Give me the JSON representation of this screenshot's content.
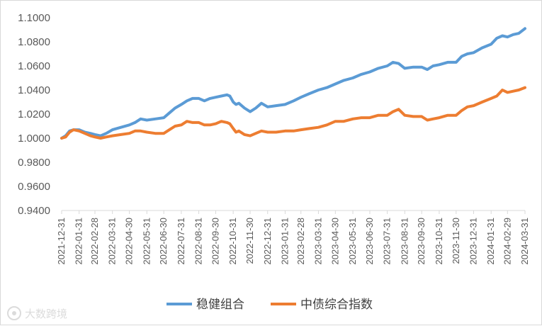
{
  "chart_data": {
    "type": "line",
    "ylim": [
      0.94,
      1.1
    ],
    "yticks": [
      "0.9400",
      "0.9600",
      "0.9800",
      "1.0000",
      "1.0200",
      "1.0400",
      "1.0600",
      "1.0800",
      "1.1000"
    ],
    "x_start": "2021-12-31",
    "x_end": "2024-03-31",
    "xticks": [
      "2021-12-31",
      "2022-01-31",
      "2022-02-28",
      "2022-03-31",
      "2022-04-30",
      "2022-05-31",
      "2022-06-30",
      "2022-07-31",
      "2022-08-31",
      "2022-09-30",
      "2022-10-31",
      "2022-11-30",
      "2022-12-31",
      "2023-01-31",
      "2023-02-28",
      "2023-03-31",
      "2023-04-30",
      "2023-05-31",
      "2023-06-30",
      "2023-07-31",
      "2023-08-31",
      "2023-09-30",
      "2023-10-31",
      "2023-11-30",
      "2023-12-31",
      "2024-01-31",
      "2024-02-29",
      "2024-03-31"
    ],
    "grid": false,
    "legend_position": "bottom",
    "series": [
      {
        "name": "稳健组合",
        "color": "#5b9bd5",
        "points": [
          [
            "2021-12-31",
            1.0
          ],
          [
            "2022-01-07",
            1.002
          ],
          [
            "2022-01-14",
            1.006
          ],
          [
            "2022-01-21",
            1.007
          ],
          [
            "2022-01-31",
            1.007
          ],
          [
            "2022-02-10",
            1.005
          ],
          [
            "2022-02-20",
            1.004
          ],
          [
            "2022-02-28",
            1.003
          ],
          [
            "2022-03-10",
            1.002
          ],
          [
            "2022-03-20",
            1.004
          ],
          [
            "2022-03-31",
            1.007
          ],
          [
            "2022-04-15",
            1.009
          ],
          [
            "2022-04-30",
            1.011
          ],
          [
            "2022-05-10",
            1.013
          ],
          [
            "2022-05-20",
            1.016
          ],
          [
            "2022-05-31",
            1.015
          ],
          [
            "2022-06-15",
            1.016
          ],
          [
            "2022-06-30",
            1.017
          ],
          [
            "2022-07-10",
            1.021
          ],
          [
            "2022-07-20",
            1.025
          ],
          [
            "2022-07-31",
            1.028
          ],
          [
            "2022-08-10",
            1.031
          ],
          [
            "2022-08-20",
            1.033
          ],
          [
            "2022-08-31",
            1.033
          ],
          [
            "2022-09-10",
            1.031
          ],
          [
            "2022-09-20",
            1.033
          ],
          [
            "2022-09-30",
            1.034
          ],
          [
            "2022-10-10",
            1.035
          ],
          [
            "2022-10-20",
            1.036
          ],
          [
            "2022-10-25",
            1.035
          ],
          [
            "2022-10-31",
            1.03
          ],
          [
            "2022-11-05",
            1.028
          ],
          [
            "2022-11-10",
            1.029
          ],
          [
            "2022-11-20",
            1.025
          ],
          [
            "2022-11-30",
            1.022
          ],
          [
            "2022-12-10",
            1.025
          ],
          [
            "2022-12-20",
            1.029
          ],
          [
            "2022-12-31",
            1.026
          ],
          [
            "2023-01-15",
            1.027
          ],
          [
            "2023-01-31",
            1.028
          ],
          [
            "2023-02-15",
            1.031
          ],
          [
            "2023-02-28",
            1.034
          ],
          [
            "2023-03-15",
            1.037
          ],
          [
            "2023-03-31",
            1.04
          ],
          [
            "2023-04-15",
            1.042
          ],
          [
            "2023-04-30",
            1.045
          ],
          [
            "2023-05-15",
            1.048
          ],
          [
            "2023-05-31",
            1.05
          ],
          [
            "2023-06-15",
            1.053
          ],
          [
            "2023-06-30",
            1.055
          ],
          [
            "2023-07-15",
            1.058
          ],
          [
            "2023-07-31",
            1.06
          ],
          [
            "2023-08-10",
            1.063
          ],
          [
            "2023-08-20",
            1.062
          ],
          [
            "2023-08-31",
            1.058
          ],
          [
            "2023-09-15",
            1.059
          ],
          [
            "2023-09-30",
            1.059
          ],
          [
            "2023-10-10",
            1.057
          ],
          [
            "2023-10-20",
            1.06
          ],
          [
            "2023-10-31",
            1.061
          ],
          [
            "2023-11-15",
            1.063
          ],
          [
            "2023-11-30",
            1.063
          ],
          [
            "2023-12-10",
            1.068
          ],
          [
            "2023-12-20",
            1.07
          ],
          [
            "2023-12-31",
            1.071
          ],
          [
            "2024-01-15",
            1.075
          ],
          [
            "2024-01-31",
            1.078
          ],
          [
            "2024-02-10",
            1.083
          ],
          [
            "2024-02-20",
            1.085
          ],
          [
            "2024-02-29",
            1.084
          ],
          [
            "2024-03-10",
            1.086
          ],
          [
            "2024-03-20",
            1.087
          ],
          [
            "2024-03-31",
            1.091
          ]
        ]
      },
      {
        "name": "中债综合指数",
        "color": "#ed7d31",
        "points": [
          [
            "2021-12-31",
            1.0
          ],
          [
            "2022-01-07",
            1.001
          ],
          [
            "2022-01-14",
            1.005
          ],
          [
            "2022-01-21",
            1.007
          ],
          [
            "2022-01-31",
            1.006
          ],
          [
            "2022-02-10",
            1.004
          ],
          [
            "2022-02-20",
            1.002
          ],
          [
            "2022-02-28",
            1.001
          ],
          [
            "2022-03-10",
            1.0
          ],
          [
            "2022-03-20",
            1.001
          ],
          [
            "2022-03-31",
            1.002
          ],
          [
            "2022-04-15",
            1.003
          ],
          [
            "2022-04-30",
            1.004
          ],
          [
            "2022-05-10",
            1.006
          ],
          [
            "2022-05-20",
            1.006
          ],
          [
            "2022-05-31",
            1.005
          ],
          [
            "2022-06-15",
            1.004
          ],
          [
            "2022-06-30",
            1.004
          ],
          [
            "2022-07-10",
            1.007
          ],
          [
            "2022-07-20",
            1.01
          ],
          [
            "2022-07-31",
            1.011
          ],
          [
            "2022-08-10",
            1.014
          ],
          [
            "2022-08-20",
            1.013
          ],
          [
            "2022-08-31",
            1.013
          ],
          [
            "2022-09-10",
            1.011
          ],
          [
            "2022-09-20",
            1.011
          ],
          [
            "2022-09-30",
            1.012
          ],
          [
            "2022-10-10",
            1.014
          ],
          [
            "2022-10-20",
            1.013
          ],
          [
            "2022-10-25",
            1.012
          ],
          [
            "2022-10-31",
            1.008
          ],
          [
            "2022-11-05",
            1.005
          ],
          [
            "2022-11-10",
            1.006
          ],
          [
            "2022-11-20",
            1.003
          ],
          [
            "2022-11-30",
            1.002
          ],
          [
            "2022-12-10",
            1.004
          ],
          [
            "2022-12-20",
            1.006
          ],
          [
            "2022-12-31",
            1.005
          ],
          [
            "2023-01-15",
            1.005
          ],
          [
            "2023-01-31",
            1.006
          ],
          [
            "2023-02-15",
            1.006
          ],
          [
            "2023-02-28",
            1.007
          ],
          [
            "2023-03-15",
            1.008
          ],
          [
            "2023-03-31",
            1.009
          ],
          [
            "2023-04-15",
            1.011
          ],
          [
            "2023-04-30",
            1.014
          ],
          [
            "2023-05-15",
            1.014
          ],
          [
            "2023-05-31",
            1.016
          ],
          [
            "2023-06-15",
            1.017
          ],
          [
            "2023-06-30",
            1.017
          ],
          [
            "2023-07-15",
            1.019
          ],
          [
            "2023-07-31",
            1.019
          ],
          [
            "2023-08-10",
            1.022
          ],
          [
            "2023-08-20",
            1.024
          ],
          [
            "2023-08-31",
            1.019
          ],
          [
            "2023-09-15",
            1.018
          ],
          [
            "2023-09-30",
            1.018
          ],
          [
            "2023-10-10",
            1.015
          ],
          [
            "2023-10-20",
            1.016
          ],
          [
            "2023-10-31",
            1.017
          ],
          [
            "2023-11-15",
            1.019
          ],
          [
            "2023-11-30",
            1.019
          ],
          [
            "2023-12-10",
            1.023
          ],
          [
            "2023-12-20",
            1.026
          ],
          [
            "2023-12-31",
            1.027
          ],
          [
            "2024-01-15",
            1.03
          ],
          [
            "2024-01-31",
            1.033
          ],
          [
            "2024-02-10",
            1.035
          ],
          [
            "2024-02-20",
            1.04
          ],
          [
            "2024-02-29",
            1.038
          ],
          [
            "2024-03-10",
            1.039
          ],
          [
            "2024-03-20",
            1.04
          ],
          [
            "2024-03-31",
            1.042
          ]
        ]
      }
    ]
  },
  "watermark": {
    "text": "大数跨境"
  }
}
